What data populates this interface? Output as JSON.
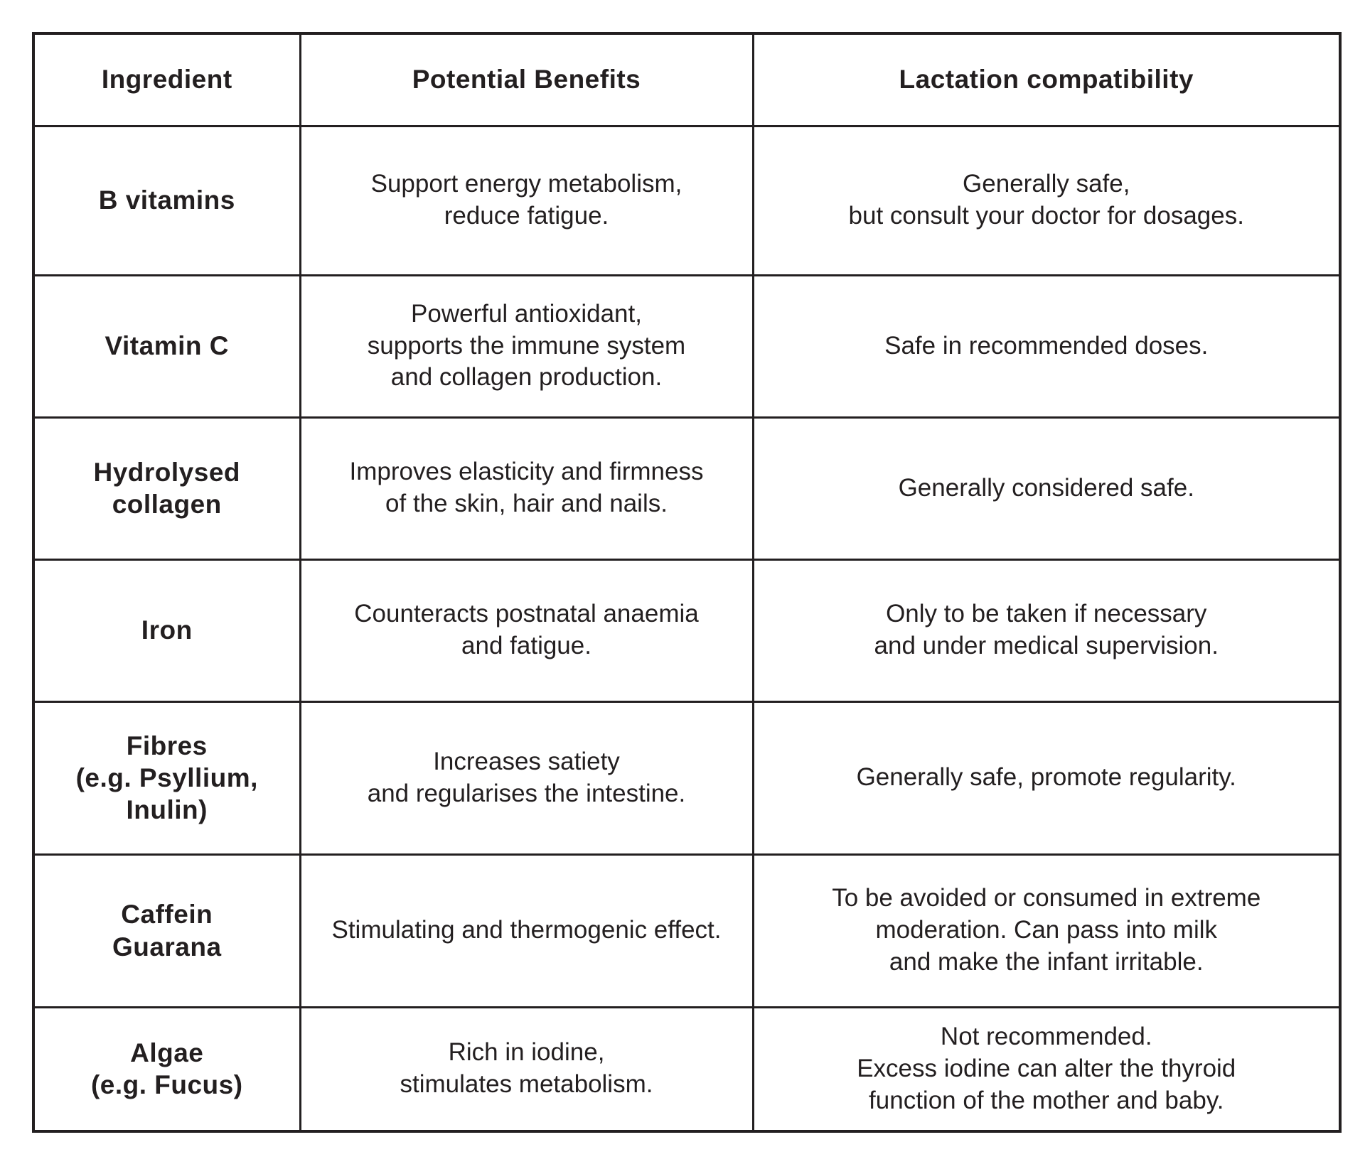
{
  "colors": {
    "background": "#ffffff",
    "border": "#231f20",
    "text": "#231f20"
  },
  "table": {
    "headers": [
      "Ingredient",
      "Potential Benefits",
      "Lactation compatibility"
    ],
    "rows": [
      {
        "ingredient": "B vitamins",
        "benefits": "Support energy metabolism,\nreduce fatigue.",
        "compatibility": "Generally safe,\nbut consult your doctor for dosages."
      },
      {
        "ingredient": "Vitamin C",
        "benefits": "Powerful antioxidant,\nsupports the immune system\nand collagen production.",
        "compatibility": "Safe in recommended doses."
      },
      {
        "ingredient": "Hydrolysed\ncollagen",
        "benefits": "Improves elasticity and firmness\nof the skin, hair and nails.",
        "compatibility": "Generally considered safe."
      },
      {
        "ingredient": "Iron",
        "benefits": "Counteracts postnatal anaemia\nand fatigue.",
        "compatibility": "Only to be taken if necessary\nand under medical supervision."
      },
      {
        "ingredient": "Fibres\n(e.g. Psyllium,\nInulin)",
        "benefits": "Increases satiety\nand regularises the intestine.",
        "compatibility": "Generally safe, promote regularity."
      },
      {
        "ingredient": "Caffein\nGuarana",
        "benefits": "Stimulating and thermogenic effect.",
        "compatibility": "To be avoided or consumed in extreme\nmoderation. Can pass into milk\nand make the infant irritable."
      },
      {
        "ingredient": "Algae\n(e.g. Fucus)",
        "benefits": "Rich in iodine,\nstimulates metabolism.",
        "compatibility": "Not recommended.\nExcess iodine can alter the thyroid\nfunction of the mother and baby."
      }
    ]
  }
}
